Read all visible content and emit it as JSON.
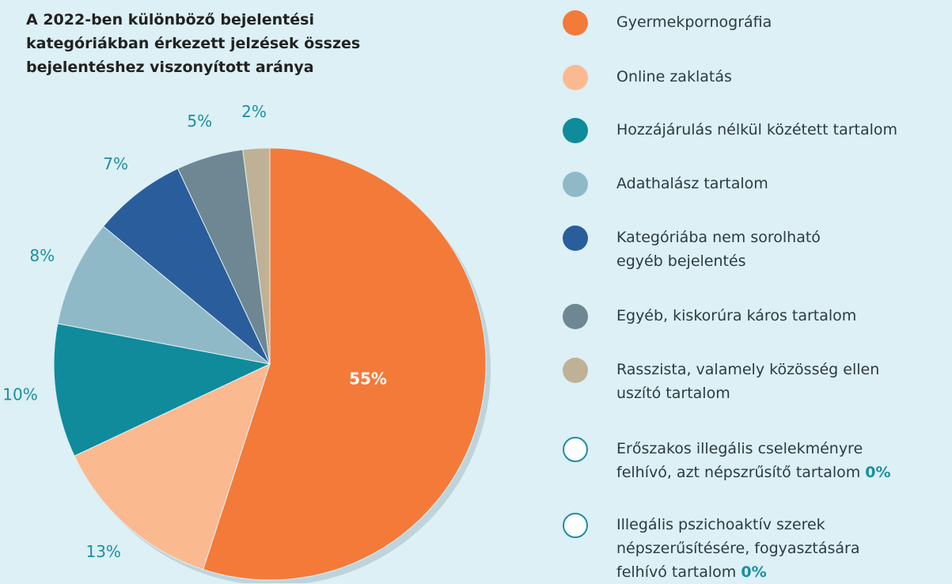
{
  "chart_data": {
    "type": "pie",
    "title": "A 2022-ben különböző bejelentési\nkategóriákban érkezett jelzések összes\nbejelentéshez viszonyított aránya",
    "categories": [
      "Gyermekpornográfia",
      "Online zaklatás",
      "Hozzájárulás nélkül közétett tartalom",
      "Adathalász tartalom",
      "Kategóriába nem sorolható\negyéb bejelentés",
      "Egyéb, kiskorúra káros tartalom",
      "Rasszista, valamely közösség ellen\nuszító tartalom",
      "Erőszakos illegális cselekményre\nfelhívó, azt népszrűsítő tartalom",
      "Illegális pszichoaktív szerek\nnépszerűsítésére, fogyasztására\nfelhívó tartalom"
    ],
    "values": [
      55,
      13,
      10,
      8,
      7,
      5,
      2,
      0,
      0
    ],
    "value_labels": [
      "55%",
      "13%",
      "10%",
      "8%",
      "7%",
      "5%",
      "2%",
      "0%",
      "0%"
    ],
    "colors": [
      "#f47a3a",
      "#fbb990",
      "#0f8b9b",
      "#90b9c7",
      "#2a5d9b",
      "#6f8792",
      "#bfb196",
      "#ffffff",
      "#ffffff"
    ]
  }
}
